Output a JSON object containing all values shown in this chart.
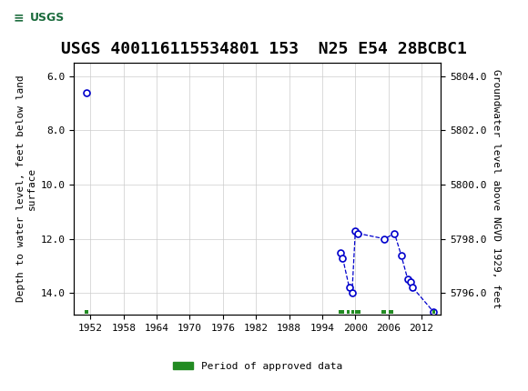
{
  "title": "USGS 400116115534801 153  N25 E54 28BCBC1",
  "left_ylabel": "Depth to water level, feet below land\nsurface",
  "right_ylabel": "Groundwater level above NGVD 1929, feet",
  "xlim": [
    1949,
    2015.5
  ],
  "ylim_left": [
    14.8,
    5.5
  ],
  "ylim_right": [
    5795.2,
    5804.5
  ],
  "xticks": [
    1952,
    1958,
    1964,
    1970,
    1976,
    1982,
    1988,
    1994,
    2000,
    2006,
    2012
  ],
  "yticks_left": [
    6.0,
    8.0,
    10.0,
    12.0,
    14.0
  ],
  "yticks_right": [
    5804.0,
    5802.0,
    5800.0,
    5798.0,
    5796.0
  ],
  "data_points_x": [
    1951.3,
    1997.3,
    1997.7,
    1998.9,
    1999.4,
    2000.0,
    2000.5,
    2005.3,
    2007.1,
    2008.3,
    2009.5,
    2010.0,
    2010.4,
    2014.2
  ],
  "data_points_y": [
    6.6,
    12.5,
    12.7,
    13.8,
    14.0,
    11.7,
    11.8,
    12.0,
    11.8,
    12.6,
    13.5,
    13.6,
    13.8,
    14.7
  ],
  "data_color": "#0000CC",
  "background_color": "#ffffff",
  "header_color": "#1a6b3c",
  "grid_color": "#cccccc",
  "approved_periods_x": [
    [
      1951.0,
      1951.6
    ],
    [
      1997.0,
      1998.0
    ],
    [
      1998.5,
      1999.0
    ],
    [
      1999.3,
      1999.7
    ],
    [
      1999.9,
      2001.0
    ],
    [
      2004.8,
      2005.6
    ],
    [
      2006.0,
      2006.8
    ],
    [
      2013.9,
      2014.5
    ]
  ],
  "legend_label": "Period of approved data",
  "legend_color": "#228B22",
  "title_fontsize": 13,
  "axis_fontsize": 8,
  "tick_fontsize": 8
}
